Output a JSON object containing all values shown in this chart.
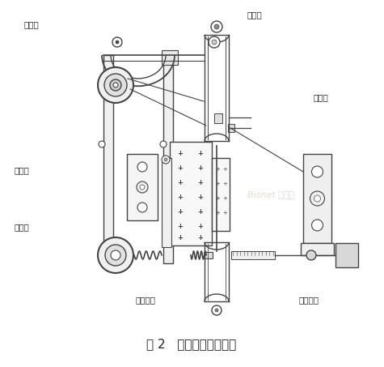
{
  "title": "图 2   张力辊机构示意图",
  "labels": {
    "top_left": "阻尼臂",
    "top_right": "阻尼筒",
    "mid_right_top": "指示针",
    "mid_left": "电位器",
    "bot_left": "张力臂",
    "bot_mid": "张力弹簧",
    "bot_right": "调节螺母"
  },
  "bg_color": "#ffffff",
  "line_color": "#444444",
  "watermark": "Bisnet 必胜网"
}
